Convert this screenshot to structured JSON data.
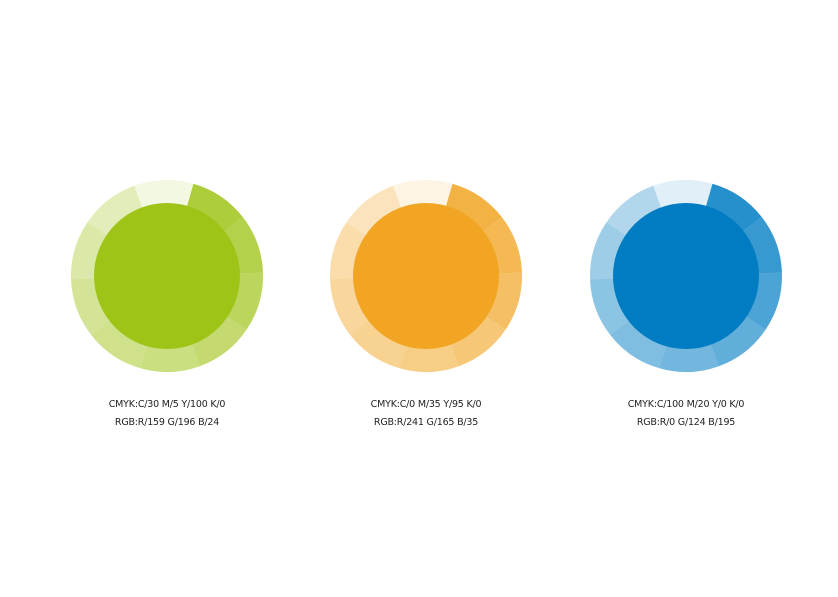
{
  "swatches": [
    {
      "color": "#9fc418",
      "cmyk": "CMYK:C/30  M/5  Y/100  K/0",
      "rgb": "RGB:R/159  G/196  B/24"
    },
    {
      "color": "#f1a523",
      "cmyk": "CMYK:C/0  M/35  Y/95  K/0",
      "rgb": "RGB:R/241  G/165  B/35"
    },
    {
      "color": "#007cc3",
      "cmyk": "CMYK:C/100  M/20  Y/0  K/0",
      "rgb": "RGB:R/0  G/124  B/195"
    }
  ]
}
